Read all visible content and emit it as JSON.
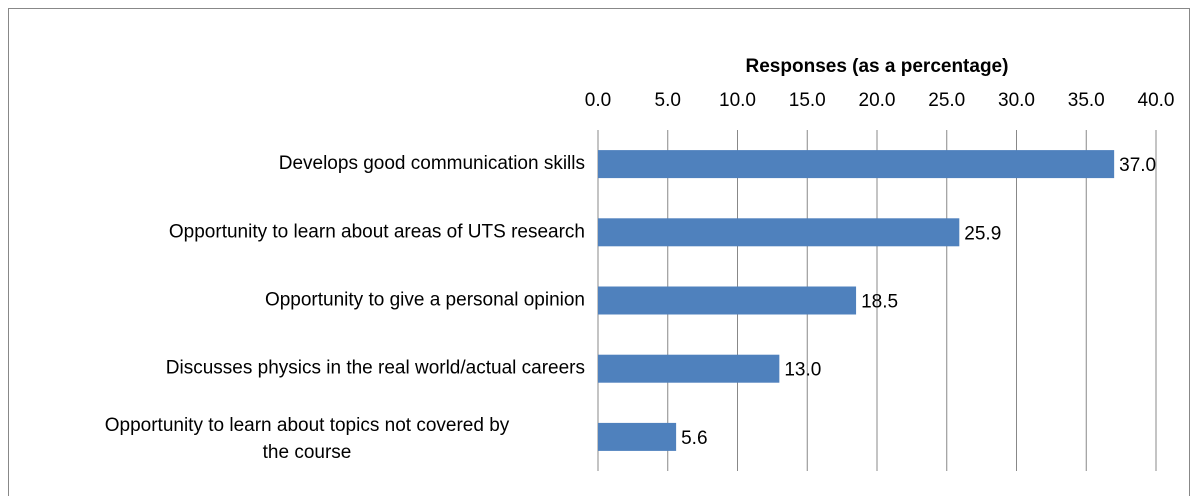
{
  "chart_data": {
    "type": "bar",
    "orientation": "horizontal",
    "x_axis_label": "Responses (as a percentage)",
    "categories": [
      "Develops good communication skills",
      "Opportunity to learn about areas of UTS research",
      "Opportunity to give a personal opinion",
      "Discusses physics in the real world/actual careers",
      "Opportunity to learn about topics not covered by the course"
    ],
    "values": [
      37.0,
      25.9,
      18.5,
      13.0,
      5.6
    ],
    "value_labels": [
      "37.0",
      "25.9",
      "18.5",
      "13.0",
      "5.6"
    ],
    "color": "#4f81bd",
    "xlim": [
      0,
      40
    ],
    "xticks": [
      {
        "value": 0,
        "label": "0.0"
      },
      {
        "value": 5,
        "label": "5.0"
      },
      {
        "value": 10,
        "label": "10.0"
      },
      {
        "value": 15,
        "label": "15.0"
      },
      {
        "value": 20,
        "label": "20.0"
      },
      {
        "value": 25,
        "label": "25.0"
      },
      {
        "value": 30,
        "label": "30.0"
      },
      {
        "value": 35,
        "label": "35.0"
      },
      {
        "value": 40,
        "label": "40.0"
      }
    ],
    "grid": true
  }
}
